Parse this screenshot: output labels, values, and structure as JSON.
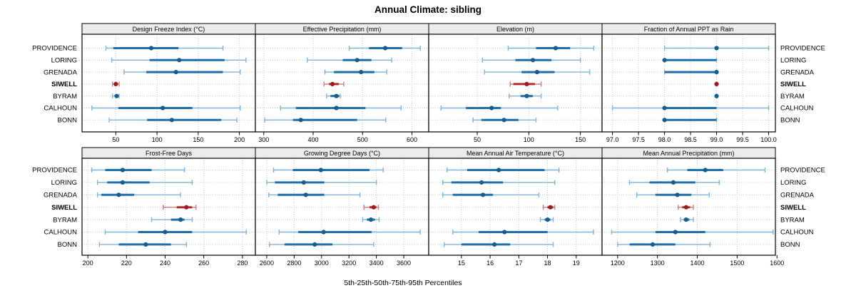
{
  "colors": {
    "blue_light": "#7fb5da",
    "blue": "#1d6fae",
    "blue_dark": "#155d8c",
    "red_light": "#cf7b7b",
    "red": "#b42b2b",
    "red_dark": "#9c1c1c",
    "grid": "#c9c9c9",
    "strip_bg": "#ececec",
    "border": "#000000",
    "text": "#000000"
  },
  "chart_data": {
    "type": "interval-dotplot-trellis",
    "title": "Annual Climate: sibling",
    "xlabel": "5th-25th-50th-75th-95th Percentiles",
    "percentiles": [
      5,
      25,
      50,
      75,
      95
    ],
    "grid": "dotted",
    "legend_position": "none",
    "stations": [
      "PROVIDENCE",
      "LORING",
      "GRENADA",
      "SIWELL",
      "BYRAM",
      "CALHOUN",
      "BONN"
    ],
    "highlight": "SIWELL",
    "panels": [
      {
        "title": "Design Freeze Index (°C)",
        "ticks": [
          50,
          100,
          150,
          200
        ],
        "tick_labels": [
          "50",
          "100",
          "150",
          "200"
        ],
        "xlim": [
          9,
          219.4
        ],
        "rows": [
          [
            38,
            47,
            93,
            126,
            180
          ],
          [
            45,
            91,
            127,
            182,
            208
          ],
          [
            60,
            87,
            123,
            180,
            201
          ],
          [
            46,
            48,
            50,
            52,
            54
          ],
          [
            46,
            49,
            51,
            53,
            54
          ],
          [
            21,
            53,
            107,
            143,
            201
          ],
          [
            42,
            88,
            118,
            178,
            197
          ]
        ]
      },
      {
        "title": "Effective Precipitation (mm)",
        "ticks": [
          300,
          400,
          500,
          600
        ],
        "tick_labels": [
          "300",
          "400",
          "500",
          "600"
        ],
        "xlim": [
          283,
          634
        ],
        "rows": [
          [
            473,
            513,
            546,
            580,
            617
          ],
          [
            388,
            460,
            489,
            518,
            559
          ],
          [
            424,
            442,
            497,
            524,
            549
          ],
          [
            422,
            432,
            439,
            452,
            462
          ],
          [
            427,
            435,
            447,
            453,
            455
          ],
          [
            334,
            365,
            447,
            506,
            578
          ],
          [
            302,
            359,
            375,
            489,
            547
          ]
        ]
      },
      {
        "title": "Elevation (m)",
        "ticks": [
          50,
          100,
          150
        ],
        "tick_labels": [
          "50",
          "100",
          "150"
        ],
        "xlim": [
          3,
          171
        ],
        "rows": [
          [
            80,
            107,
            126,
            140,
            163
          ],
          [
            55,
            87,
            104,
            122,
            150
          ],
          [
            57,
            93,
            108,
            125,
            159
          ],
          [
            82,
            85,
            98,
            106,
            112
          ],
          [
            81,
            92,
            98,
            104,
            112
          ],
          [
            15,
            39,
            64,
            73,
            128
          ],
          [
            46,
            54,
            76,
            90,
            107
          ]
        ]
      },
      {
        "title": "Fraction of Annual PPT as Rain",
        "ticks": [
          97,
          97.5,
          98,
          98.5,
          99,
          99.5,
          100
        ],
        "tick_labels": [
          "97.0",
          "97.5",
          "98.0",
          "98.5",
          "99.0",
          "99.5",
          "100.0"
        ],
        "xlim": [
          96.8,
          100.13
        ],
        "rows": [
          [
            98,
            99,
            99,
            99,
            100
          ],
          [
            98,
            98,
            98,
            99,
            99
          ],
          [
            98,
            98,
            99,
            99,
            99
          ],
          [
            99,
            99,
            99,
            99,
            99
          ],
          [
            99,
            99,
            99,
            99,
            99
          ],
          [
            97,
            98,
            98,
            99,
            100
          ],
          [
            98,
            98,
            98,
            99,
            99
          ]
        ]
      },
      {
        "title": "Frost-Free Days",
        "ticks": [
          200,
          220,
          240,
          260,
          280
        ],
        "tick_labels": [
          "200",
          "220",
          "240",
          "260",
          "280"
        ],
        "xlim": [
          197,
          286.7
        ],
        "rows": [
          [
            202,
            209,
            218,
            233,
            250
          ],
          [
            205,
            210,
            218,
            232,
            254
          ],
          [
            205,
            207,
            216,
            224,
            248
          ],
          [
            239,
            246,
            251,
            254,
            256
          ],
          [
            233,
            243,
            248,
            250,
            254
          ],
          [
            209,
            226,
            240,
            254,
            282
          ],
          [
            206,
            216,
            230,
            243,
            251
          ]
        ]
      },
      {
        "title": "Growing Degree Days (°C)",
        "ticks": [
          2600,
          2800,
          3000,
          3200,
          3400,
          3600
        ],
        "tick_labels": [
          "2600",
          "2800",
          "3000",
          "3200",
          "3400",
          "3600"
        ],
        "xlim": [
          2517,
          3782
        ],
        "rows": [
          [
            2650,
            2790,
            2995,
            3350,
            3450
          ],
          [
            2600,
            2660,
            2870,
            3020,
            3400
          ],
          [
            2615,
            2680,
            2885,
            3020,
            3280
          ],
          [
            3310,
            3350,
            3380,
            3400,
            3415
          ],
          [
            3300,
            3330,
            3360,
            3390,
            3420
          ],
          [
            2690,
            2830,
            3015,
            3365,
            3720
          ],
          [
            2620,
            2730,
            2950,
            3080,
            3380
          ]
        ]
      },
      {
        "title": "Mean Annual Air Temperature (°C)",
        "ticks": [
          15,
          16,
          17,
          18,
          19
        ],
        "tick_labels": [
          "15",
          "16",
          "17",
          "18",
          "19"
        ],
        "xlim": [
          13.86,
          19.9
        ],
        "rows": [
          [
            14.5,
            15.2,
            16.3,
            17.9,
            18.4
          ],
          [
            14.35,
            14.65,
            15.7,
            16.45,
            18.25
          ],
          [
            14.35,
            14.7,
            15.75,
            16.1,
            17.7
          ],
          [
            17.85,
            18.0,
            18.1,
            18.2,
            18.25
          ],
          [
            17.75,
            17.9,
            18.0,
            18.1,
            18.2
          ],
          [
            14.7,
            15.6,
            16.5,
            18.0,
            19.6
          ],
          [
            14.4,
            15.0,
            16.15,
            16.7,
            18.2
          ]
        ]
      },
      {
        "title": "Mean Annual Precipitation (mm)",
        "ticks": [
          1200,
          1300,
          1400,
          1500,
          1600
        ],
        "tick_labels": [
          "1200",
          "1300",
          "1400",
          "1500",
          "1600"
        ],
        "xlim": [
          1161,
          1596
        ],
        "rows": [
          [
            1325,
            1375,
            1420,
            1465,
            1570
          ],
          [
            1230,
            1280,
            1340,
            1395,
            1455
          ],
          [
            1248,
            1295,
            1350,
            1385,
            1430
          ],
          [
            1352,
            1362,
            1372,
            1382,
            1390
          ],
          [
            1358,
            1366,
            1372,
            1380,
            1390
          ],
          [
            1185,
            1295,
            1345,
            1420,
            1590
          ],
          [
            1200,
            1230,
            1288,
            1345,
            1432
          ]
        ]
      }
    ]
  }
}
